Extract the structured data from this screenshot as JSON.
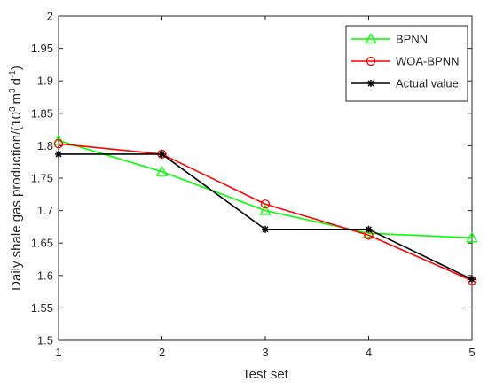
{
  "chart_data": {
    "type": "line",
    "xlabel": "Test set",
    "ylabel_prefix": "Daily shale gas production/(10",
    "ylabel_sup1": "3",
    "ylabel_mid1": "m",
    "ylabel_sup2": "3",
    "ylabel_mid2": "d",
    "ylabel_sup3": "-1",
    "ylabel_suffix": ")",
    "x": [
      1,
      2,
      3,
      4,
      5
    ],
    "xlim": [
      1,
      5
    ],
    "ylim": [
      1.5,
      2
    ],
    "xticks": [
      "1",
      "2",
      "3",
      "4",
      "5"
    ],
    "yticks": [
      "1.5",
      "1.55",
      "1.6",
      "1.65",
      "1.7",
      "1.75",
      "1.8",
      "1.85",
      "1.9",
      "1.95",
      "2"
    ],
    "grid": false,
    "legend_position": "top-right",
    "series": [
      {
        "name": "BPNN",
        "values": [
          1.808,
          1.76,
          1.7,
          1.665,
          1.658
        ],
        "color": "#00ff00",
        "marker": "triangle"
      },
      {
        "name": "WOA-BPNN",
        "values": [
          1.803,
          1.787,
          1.71,
          1.662,
          1.592
        ],
        "color": "#ff0000",
        "marker": "circle"
      },
      {
        "name": "Actual value",
        "values": [
          1.787,
          1.787,
          1.671,
          1.671,
          1.594
        ],
        "color": "#000000",
        "marker": "asterisk"
      }
    ]
  }
}
